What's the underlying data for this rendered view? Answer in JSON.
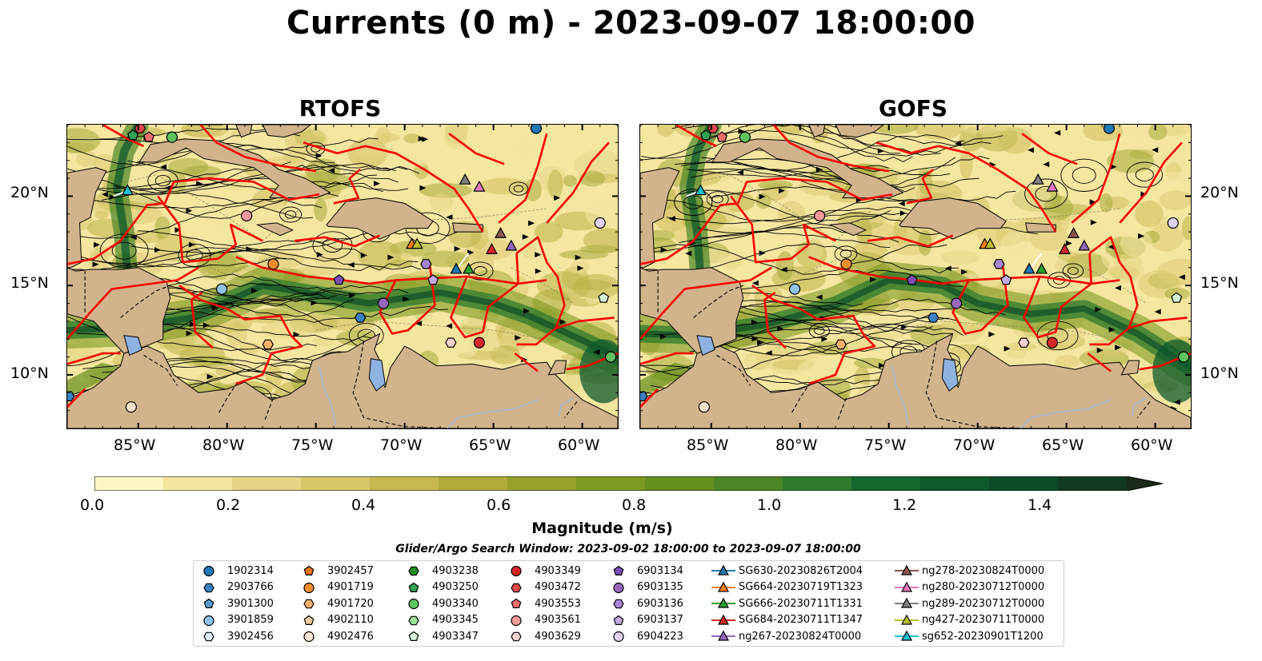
{
  "title": "Currents (0 m) - 2023-09-07 18:00:00",
  "panels": [
    {
      "title": "RTOFS"
    },
    {
      "title": "GOFS"
    }
  ],
  "map": {
    "lon_range": [
      -89,
      -58
    ],
    "lat_range": [
      7,
      24
    ],
    "x_ticks": [
      "85°W",
      "80°W",
      "75°W",
      "70°W",
      "65°W",
      "60°W"
    ],
    "y_ticks": [
      "20°N",
      "15°N",
      "10°N"
    ],
    "land_color": "#d2b48c",
    "boundary_color": "#ff0000",
    "lake_color": "#8fb3e0",
    "river_color": "#9fb8d8"
  },
  "colorbar": {
    "label": "Magnitude (m/s)",
    "ticks": [
      "0.0",
      "0.2",
      "0.4",
      "0.6",
      "0.8",
      "1.0",
      "1.2",
      "1.4"
    ],
    "range": [
      0,
      1.5
    ],
    "extend": "max",
    "colors": [
      "#fdf7c3",
      "#f3e6a2",
      "#e6d585",
      "#d9c76c",
      "#c7b852",
      "#b0ab3a",
      "#98a02a",
      "#7e9a22",
      "#669020",
      "#4c8626",
      "#2e7a2c",
      "#14682e",
      "#0e5a2c",
      "#0d4a26",
      "#123a20",
      "#1a2a18"
    ]
  },
  "search_window": "Glider/Argo Search Window: 2023-09-02 18:00:00 to 2023-09-07 18:00:00",
  "legend": {
    "columns": [
      [
        {
          "label": "1902314",
          "marker": "circle",
          "color": "#1f77b4"
        },
        {
          "label": "2903766",
          "marker": "hexagon",
          "color": "#3b82c4"
        },
        {
          "label": "3901300",
          "marker": "pentagon",
          "color": "#5b9bd5"
        },
        {
          "label": "3901859",
          "marker": "circle",
          "color": "#8fc3ea"
        },
        {
          "label": "3902456",
          "marker": "hexagon",
          "color": "#d8ecf8"
        }
      ],
      [
        {
          "label": "3902457",
          "marker": "pentagon",
          "color": "#e6740f"
        },
        {
          "label": "4901719",
          "marker": "circle",
          "color": "#f28e2b"
        },
        {
          "label": "4901720",
          "marker": "hexagon",
          "color": "#f8b26a"
        },
        {
          "label": "4902110",
          "marker": "pentagon",
          "color": "#fbcfa0"
        },
        {
          "label": "4902476",
          "marker": "circle",
          "color": "#fde6cf"
        }
      ],
      [
        {
          "label": "4903238",
          "marker": "hexagon",
          "color": "#238b23"
        },
        {
          "label": "4903250",
          "marker": "pentagon",
          "color": "#31a354"
        },
        {
          "label": "4903340",
          "marker": "circle",
          "color": "#5fc45f"
        },
        {
          "label": "4903345",
          "marker": "hexagon",
          "color": "#98e098"
        },
        {
          "label": "4903347",
          "marker": "pentagon",
          "color": "#d6f5d6"
        }
      ],
      [
        {
          "label": "4903349",
          "marker": "circle",
          "color": "#d62728"
        },
        {
          "label": "4903472",
          "marker": "hexagon",
          "color": "#e34a4a"
        },
        {
          "label": "4903553",
          "marker": "pentagon",
          "color": "#ee6e6e"
        },
        {
          "label": "4903561",
          "marker": "circle",
          "color": "#f49a9a"
        },
        {
          "label": "4903629",
          "marker": "hexagon",
          "color": "#fbd0d0"
        }
      ],
      [
        {
          "label": "6903134",
          "marker": "pentagon",
          "color": "#7b4fb5"
        },
        {
          "label": "6903135",
          "marker": "circle",
          "color": "#9467bd"
        },
        {
          "label": "6903136",
          "marker": "hexagon",
          "color": "#aa85d3"
        },
        {
          "label": "6903137",
          "marker": "pentagon",
          "color": "#c6a8e3"
        },
        {
          "label": "6904223",
          "marker": "circle",
          "color": "#e3d2f3"
        }
      ],
      [
        {
          "label": "SG630-20230826T2004",
          "marker": "triangle",
          "color": "#1f77b4"
        },
        {
          "label": "SG664-20230719T1323",
          "marker": "triangle",
          "color": "#ff7f0e"
        },
        {
          "label": "SG666-20230711T1331",
          "marker": "triangle",
          "color": "#2ca02c"
        },
        {
          "label": "SG684-20230711T1347",
          "marker": "triangle",
          "color": "#d62728"
        },
        {
          "label": "ng267-20230824T0000",
          "marker": "triangle",
          "color": "#9467bd"
        }
      ],
      [
        {
          "label": "ng278-20230824T0000",
          "marker": "triangle",
          "color": "#8c564b"
        },
        {
          "label": "ng280-20230712T0000",
          "marker": "triangle",
          "color": "#e377c2"
        },
        {
          "label": "ng289-20230712T0000",
          "marker": "triangle",
          "color": "#7f7f7f"
        },
        {
          "label": "ng427-20230711T0000",
          "marker": "triangle",
          "color": "#bcbd22"
        },
        {
          "label": "sg652-20230901T1200",
          "marker": "triangle",
          "color": "#17becf"
        }
      ]
    ]
  },
  "markers_on_map": [
    {
      "label": "sg652-20230901T1200",
      "lon": -85.6,
      "lat": 20.3
    },
    {
      "label": "4903250",
      "lon": -85.3,
      "lat": 23.4
    },
    {
      "label": "4903340",
      "lon": -83.1,
      "lat": 23.3
    },
    {
      "label": "4903553",
      "lon": -84.4,
      "lat": 23.3
    },
    {
      "label": "4903472",
      "lon": -84.9,
      "lat": 23.8
    },
    {
      "label": "1902314",
      "lon": -62.6,
      "lat": 23.8
    },
    {
      "label": "4903561",
      "lon": -78.9,
      "lat": 18.9
    },
    {
      "label": "4901719",
      "lon": -77.4,
      "lat": 16.2
    },
    {
      "label": "3901859",
      "lon": -80.3,
      "lat": 14.8
    },
    {
      "label": "4901720",
      "lon": -77.7,
      "lat": 11.7
    },
    {
      "label": "4902476",
      "lon": -85.4,
      "lat": 8.2
    },
    {
      "label": "2903766",
      "lon": -88.9,
      "lat": 8.8
    },
    {
      "label": "6903134",
      "lon": -73.7,
      "lat": 15.3
    },
    {
      "label": "6903135",
      "lon": -71.2,
      "lat": 14.0
    },
    {
      "label": "2903766",
      "lon": -72.5,
      "lat": 13.2
    },
    {
      "label": "SG664-20230719T1323",
      "lon": -69.6,
      "lat": 17.3
    },
    {
      "label": "ng427-20230711T0000",
      "lon": -69.3,
      "lat": 17.3
    },
    {
      "label": "6903136",
      "lon": -68.8,
      "lat": 16.2
    },
    {
      "label": "6903137",
      "lon": -68.4,
      "lat": 15.3
    },
    {
      "label": "SG630-20230826T2004",
      "lon": -67.1,
      "lat": 15.9
    },
    {
      "label": "SG666-20230711T1331",
      "lon": -66.4,
      "lat": 15.9
    },
    {
      "label": "ng289-20230712T0000",
      "lon": -66.6,
      "lat": 20.9
    },
    {
      "label": "ng280-20230712T0000",
      "lon": -65.8,
      "lat": 20.5
    },
    {
      "label": "ng278-20230824T0000",
      "lon": -64.6,
      "lat": 17.9
    },
    {
      "label": "SG684-20230711T1347",
      "lon": -65.1,
      "lat": 17.0
    },
    {
      "label": "ng267-20230824T0000",
      "lon": -64.0,
      "lat": 17.2
    },
    {
      "label": "4903629",
      "lon": -67.4,
      "lat": 11.8
    },
    {
      "label": "4903349",
      "lon": -65.8,
      "lat": 11.8
    },
    {
      "label": "6904223",
      "lon": -59.0,
      "lat": 18.5
    },
    {
      "label": "4903347",
      "lon": -58.8,
      "lat": 14.3
    },
    {
      "label": "4903340",
      "lon": -58.4,
      "lat": 11.0
    }
  ]
}
